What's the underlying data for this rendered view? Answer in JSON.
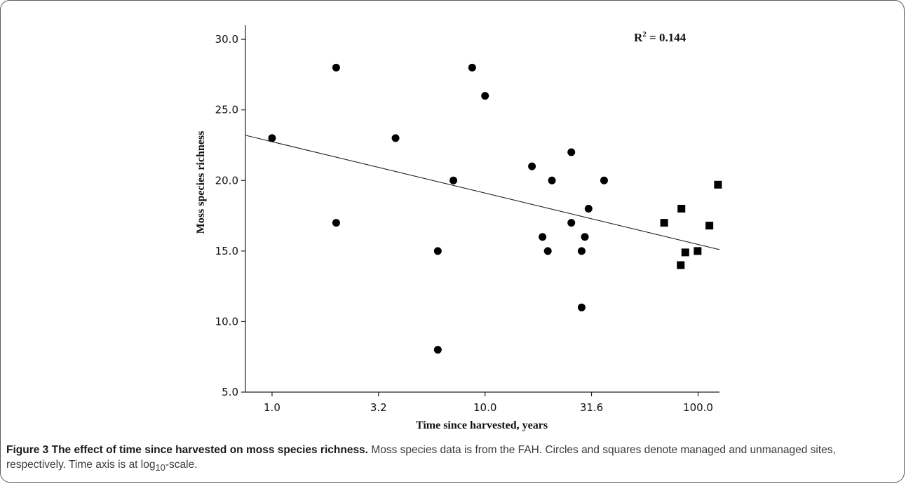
{
  "figure": {
    "caption_title": "Figure 3 The effect of time since harvested on moss species richness.",
    "caption_text_1": " Moss species data is from the FAH. Circles and squares denote managed and unmanaged sites, respectively. Time axis is at log",
    "caption_sub": "10",
    "caption_text_2": "-scale."
  },
  "chart_data": {
    "type": "scatter",
    "xlabel": "Time since harvested, years",
    "ylabel": "Moss species richness",
    "x_scale": "log10",
    "xlim": [
      0.75,
      126
    ],
    "ylim": [
      5,
      31
    ],
    "x_ticks": [
      {
        "value": 1.0,
        "label": "1.0"
      },
      {
        "value": 3.16,
        "label": "3.2"
      },
      {
        "value": 10.0,
        "label": "10.0"
      },
      {
        "value": 31.6,
        "label": "31.6"
      },
      {
        "value": 100.0,
        "label": "100.0"
      }
    ],
    "y_ticks": [
      {
        "value": 5,
        "label": "5.0"
      },
      {
        "value": 10,
        "label": "10.0"
      },
      {
        "value": 15,
        "label": "15.0"
      },
      {
        "value": 20,
        "label": "20.0"
      },
      {
        "value": 25,
        "label": "25.0"
      },
      {
        "value": 30,
        "label": "30.0"
      }
    ],
    "annotation": {
      "base": "R",
      "sup": "2",
      "rest": " = 0.144"
    },
    "fit_line": {
      "x": [
        0.75,
        126
      ],
      "y": [
        23.2,
        15.1
      ]
    },
    "series": [
      {
        "marker": "circle",
        "points": [
          [
            1.0,
            23
          ],
          [
            2.0,
            28
          ],
          [
            2.0,
            17
          ],
          [
            3.8,
            23
          ],
          [
            6.0,
            15
          ],
          [
            6.0,
            8
          ],
          [
            7.1,
            20
          ],
          [
            8.7,
            28
          ],
          [
            10.0,
            26
          ],
          [
            16.6,
            21
          ],
          [
            18.6,
            16
          ],
          [
            19.7,
            15
          ],
          [
            20.6,
            20
          ],
          [
            25.4,
            22
          ],
          [
            25.4,
            17
          ],
          [
            28.4,
            15
          ],
          [
            28.4,
            11
          ],
          [
            29.4,
            16
          ],
          [
            30.6,
            18
          ],
          [
            36.2,
            20
          ]
        ]
      },
      {
        "marker": "square",
        "points": [
          [
            69.3,
            17
          ],
          [
            82.9,
            14
          ],
          [
            83.5,
            18
          ],
          [
            87.1,
            14.9
          ],
          [
            99.5,
            15
          ],
          [
            113.0,
            16.8
          ],
          [
            124.0,
            19.7
          ]
        ]
      }
    ]
  }
}
